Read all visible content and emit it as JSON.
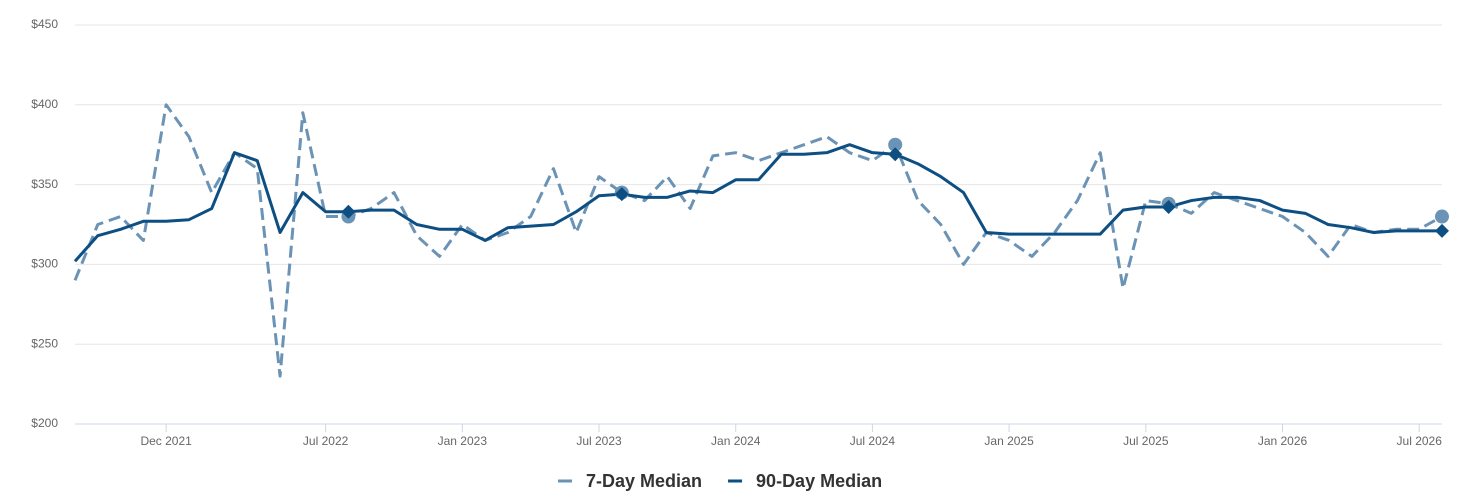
{
  "chart_data": {
    "type": "line",
    "x": [
      "2021-08",
      "2021-09",
      "2021-10",
      "2021-11",
      "2021-12",
      "2022-01",
      "2022-02",
      "2022-03",
      "2022-04",
      "2022-05",
      "2022-06",
      "2022-07",
      "2022-08",
      "2022-09",
      "2022-10",
      "2022-11",
      "2022-12",
      "2023-01",
      "2023-02",
      "2023-03",
      "2023-04",
      "2023-05",
      "2023-06",
      "2023-07",
      "2023-08",
      "2023-09",
      "2023-10",
      "2023-11",
      "2023-12",
      "2024-01",
      "2024-02",
      "2024-03",
      "2024-04",
      "2024-05",
      "2024-06",
      "2024-07",
      "2024-08",
      "2024-09",
      "2024-10",
      "2024-11",
      "2024-12",
      "2025-01",
      "2025-02",
      "2025-03",
      "2025-04",
      "2025-05",
      "2025-06",
      "2025-07",
      "2025-08",
      "2025-09",
      "2025-10",
      "2025-11",
      "2025-12",
      "2026-01",
      "2026-02",
      "2026-03",
      "2026-04",
      "2026-05",
      "2026-06",
      "2026-07",
      "2026-08"
    ],
    "series": [
      {
        "name": "7-Day Median",
        "color": "#6b93b5",
        "dashed": true,
        "values": [
          290,
          325,
          330,
          315,
          400,
          380,
          345,
          370,
          360,
          230,
          395,
          330,
          330,
          335,
          345,
          318,
          305,
          325,
          315,
          320,
          330,
          360,
          320,
          355,
          345,
          340,
          355,
          335,
          368,
          370,
          365,
          370,
          375,
          380,
          370,
          365,
          375,
          340,
          325,
          300,
          320,
          315,
          305,
          320,
          340,
          370,
          285,
          340,
          338,
          332,
          345,
          340,
          335,
          330,
          320,
          305,
          325,
          320,
          322,
          322,
          330
        ]
      },
      {
        "name": "90-Day Median",
        "color": "#0d4f82",
        "dashed": false,
        "values": [
          302,
          318,
          322,
          327,
          327,
          328,
          335,
          370,
          365,
          320,
          345,
          333,
          333,
          334,
          334,
          325,
          322,
          322,
          315,
          323,
          324,
          325,
          333,
          343,
          344,
          342,
          342,
          346,
          345,
          353,
          353,
          369,
          369,
          370,
          375,
          370,
          369,
          363,
          355,
          345,
          320,
          319,
          319,
          319,
          319,
          319,
          334,
          336,
          336,
          340,
          342,
          342,
          340,
          334,
          332,
          325,
          323,
          320,
          321,
          321,
          321
        ]
      }
    ],
    "highlights": [
      "2022-08",
      "2023-08",
      "2024-08",
      "2025-08",
      "2026-08"
    ],
    "xlim": [
      "2021-08",
      "2026-08"
    ],
    "xticks": [
      {
        "value": "2021-12",
        "label": "Dec 2021"
      },
      {
        "value": "2022-07",
        "label": "Jul 2022"
      },
      {
        "value": "2023-01",
        "label": "Jan 2023"
      },
      {
        "value": "2023-07",
        "label": "Jul 2023"
      },
      {
        "value": "2024-01",
        "label": "Jan 2024"
      },
      {
        "value": "2024-07",
        "label": "Jul 2024"
      },
      {
        "value": "2025-01",
        "label": "Jan 2025"
      },
      {
        "value": "2025-07",
        "label": "Jul 2025"
      },
      {
        "value": "2026-01",
        "label": "Jan 2026"
      },
      {
        "value": "2026-07",
        "label": "Jul 2026"
      }
    ],
    "ylim": [
      200,
      450
    ],
    "yticks": [
      {
        "value": 200,
        "label": "$200"
      },
      {
        "value": 250,
        "label": "$250"
      },
      {
        "value": 300,
        "label": "$300"
      },
      {
        "value": 350,
        "label": "$350"
      },
      {
        "value": 400,
        "label": "$400"
      },
      {
        "value": 450,
        "label": "$450"
      }
    ],
    "grid": true,
    "legend": "bottom"
  }
}
